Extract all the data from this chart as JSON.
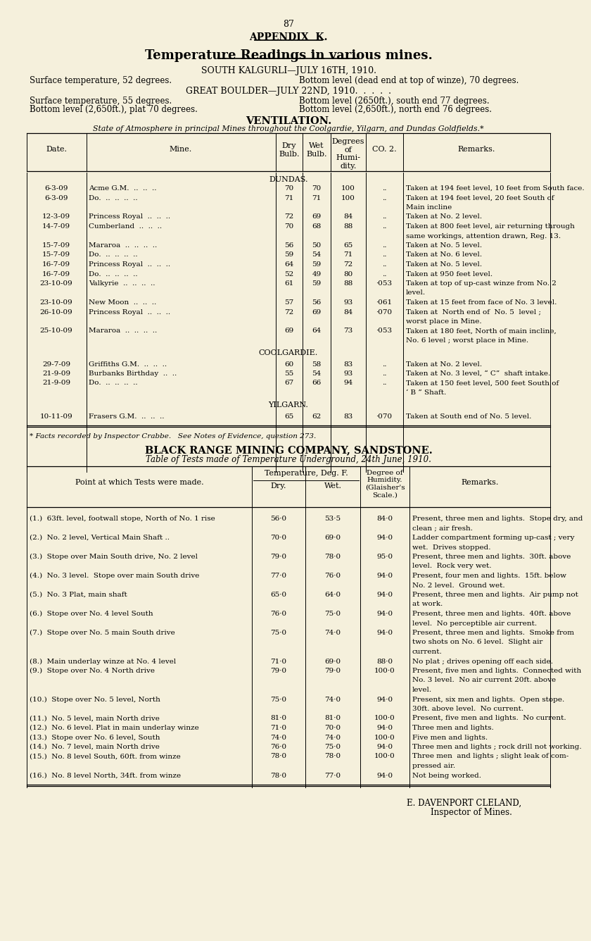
{
  "bg_color": "#f5f0dc",
  "page_number": "87",
  "appendix_title": "APPENDIX  K.",
  "main_title": "Temperature Readings in various mines.",
  "kalgurli_header": "SOUTH KALGURLI—JULY 16TH, 1910.",
  "kalgurli_left": "Surface temperature, 52 degrees.",
  "kalgurli_right": "Bottom level (dead end at top of winze), 70 degrees.",
  "boulder_header": "GREAT BOULDER—JULY 22ND, 1910.  .  .  .  .",
  "boulder_left1": "Surface temperature, 55 degrees.",
  "boulder_right1": "Bottom level (2650ft.), south end 77 degrees.",
  "boulder_left2": "Bottom level (2,650ft.), plat 70 degrees.",
  "boulder_right2": "Bottom level (2,650ft.), north end 76 degrees.",
  "ventilation_title": "VENTILATION.",
  "ventilation_subtitle": "State of Atmosphere in principal Mines throughout the Coolgardie, Yilgarn, and Dundas Goldfields.*",
  "table1_section1": "DUNDAS.",
  "table1_rows": [
    [
      "6-3-09",
      "Acme G.M.  ..  ..  ..",
      "70",
      "70",
      "100",
      "..",
      "Taken at 194 feet level, 10 feet from South face."
    ],
    [
      "6-3-09",
      "Do.  ..  ..  ..  ..",
      "71",
      "71",
      "100",
      "..",
      "Taken at 194 feet level, 20 feet South of|Main incline"
    ],
    [
      "12-3-09",
      "Princess Royal  ..  ..  ..",
      "72",
      "69",
      "84",
      "..",
      "Taken at No. 2 level."
    ],
    [
      "14-7-09",
      "Cumberland  ..  ..  ..",
      "70",
      "68",
      "88",
      "..",
      "Taken at 800 feet level, air returning through|same workings, attention drawn, Reg. 13."
    ],
    [
      "15-7-09",
      "Mararoa  ..  ..  ..  ..",
      "56",
      "50",
      "65",
      "..",
      "Taken at No. 5 level."
    ],
    [
      "15-7-09",
      "Do.  ..  ..  ..  ..",
      "59",
      "54",
      "71",
      "..",
      "Taken at No. 6 level."
    ],
    [
      "16-7-09",
      "Princess Royal  ..  ..  ..",
      "64",
      "59",
      "72",
      "..",
      "Taken at No. 5 level."
    ],
    [
      "16-7-09",
      "Do.  ..  ..  ..  ..",
      "52",
      "49",
      "80",
      "..",
      "Taken at 950 feet level."
    ],
    [
      "23-10-09",
      "Valkyrie  ..  ..  ..  ..",
      "61",
      "59",
      "88",
      "·053",
      "Taken at top of up-cast winze from No. 2|level."
    ],
    [
      "23-10-09",
      "New Moon  ..  ..  ..",
      "57",
      "56",
      "93",
      "·061",
      "Taken at 15 feet from face of No. 3 level."
    ],
    [
      "26-10-09",
      "Princess Royal  ..  ..  ..",
      "72",
      "69",
      "84",
      "·070",
      "Taken at  North end of  No. 5  level ;|worst place in Mine."
    ],
    [
      "25-10-09",
      "Mararoa  ..  ..  ..  ..",
      "69",
      "64",
      "73",
      "·053",
      "Taken at 180 feet, North of main incline,|No. 6 level ; worst place in Mine."
    ]
  ],
  "table1_section2": "COOLGARDIE.",
  "table1_rows2": [
    [
      "29-7-09",
      "Griffiths G.M.  ..  ..  ..",
      "60",
      "58",
      "83",
      "..",
      "Taken at No. 2 level."
    ],
    [
      "21-9-09",
      "Burbanks Birthday  ..  ..",
      "55",
      "54",
      "93",
      "..",
      "Taken at No. 3 level, “ C”  shaft intake."
    ],
    [
      "21-9-09",
      "Do.  ..  ..  ..  ..",
      "67",
      "66",
      "94",
      "..",
      "Taken at 150 feet level, 500 feet South of|‘ B ” Shaft."
    ]
  ],
  "table1_section3": "YILGARN.",
  "table1_rows3": [
    [
      "10-11-09",
      "Frasers G.M.  ..  ..  ..",
      "65",
      "62",
      "83",
      "·070",
      "Taken at South end of No. 5 level."
    ]
  ],
  "footnote": "* Facts recorded by Inspector Crabbe.   See Notes of Evidence, question 273.",
  "black_range_title": "BLACK RANGE MINING COMPANY, SANDSTONE.",
  "black_range_subtitle": "Table of Tests made of Temperature Underground, 24th June, 1910.",
  "table2_rows": [
    [
      "(1.)  63ft. level, footwall stope, North of No. 1 rise",
      "56·0",
      "53·5",
      "84·0",
      "Present, three men and lights.  Stope dry, and|clean ; air fresh."
    ],
    [
      "(2.)  No. 2 level, Vertical Main Shaft ..",
      "70·0",
      "69·0",
      "94·0",
      "Ladder compartment forming up-cast ; very|wet.  Drives stopped."
    ],
    [
      "(3.)  Stope over Main South drive, No. 2 level",
      "79·0",
      "78·0",
      "95·0",
      "Present, three men and lights.  30ft. above|level.  Rock very wet."
    ],
    [
      "(4.)  No. 3 level.  Stope over main South drive",
      "77·0",
      "76·0",
      "94·0",
      "Present, four men and lights.  15ft. below|No. 2 level.  Ground wet."
    ],
    [
      "(5.)  No. 3 Plat, main shaft",
      "65·0",
      "64·0",
      "94·0",
      "Present, three men and lights.  Air pump not|at work."
    ],
    [
      "(6.)  Stope over No. 4 level South",
      "76·0",
      "75·0",
      "94·0",
      "Present, three men and lights.  40ft. above|level.  No perceptible air current."
    ],
    [
      "(7.)  Stope over No. 5 main South drive",
      "75·0",
      "74·0",
      "94·0",
      "Present, three men and lights.  Smoke from|two shots on No. 6 level.  Slight air|current."
    ],
    [
      "(8.)  Main underlay winze at No. 4 level",
      "71·0",
      "69·0",
      "88·0",
      "No plat ; drives opening off each side."
    ],
    [
      "(9.)  Stope over No. 4 North drive",
      "79·0",
      "79·0",
      "100·0",
      "Present, five men and lights.  Connected with|No. 3 level.  No air current 20ft. above|level."
    ],
    [
      "(10.)  Stope over No. 5 level, North",
      "75·0",
      "74·0",
      "94·0",
      "Present, six men and lights.  Open stope.|30ft. above level.  No current."
    ],
    [
      "(11.)  No. 5 level, main North drive",
      "81·0",
      "81·0",
      "100·0",
      "Present, five men and lights.  No current."
    ],
    [
      "(12.)  No. 6 level. Plat in main underlay winze",
      "71·0",
      "70·0",
      "94·0",
      "Three men and lights."
    ],
    [
      "(13.)  Stope over No. 6 level, South",
      "74·0",
      "74·0",
      "100·0",
      "Five men and lights."
    ],
    [
      "(14.)  No. 7 level, main North drive",
      "76·0",
      "75·0",
      "94·0",
      "Three men and lights ; rock drill not working."
    ],
    [
      "(15.)  No. 8 level South, 60ft. from winze",
      "78·0",
      "78·0",
      "100·0",
      "Three men  and lights ; slight leak of com-|pressed air."
    ],
    [
      "(16.)  No. 8 level North, 34ft. from winze",
      "78·0",
      "77·0",
      "94·0",
      "Not being worked."
    ]
  ],
  "signature_line1": "E. DAVENPORT CLELAND,",
  "signature_line2": "Inspector of Mines."
}
